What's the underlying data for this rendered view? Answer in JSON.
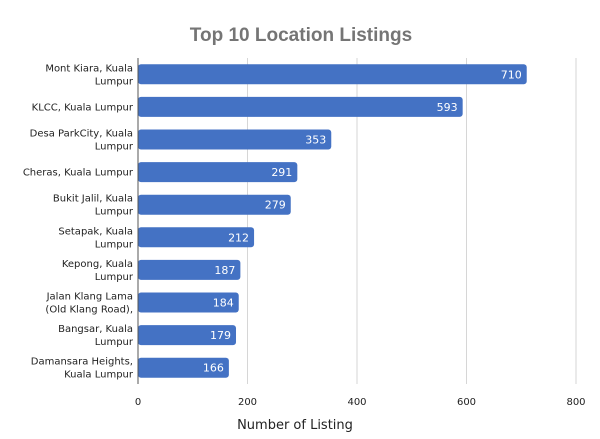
{
  "chart_data": {
    "type": "bar",
    "orientation": "horizontal",
    "title": "Top 10 Location Listings",
    "xlabel": "Number of Listing",
    "ylabel": "",
    "xlim": [
      0,
      800
    ],
    "xticks": [
      "0",
      "200",
      "400",
      "600",
      "800"
    ],
    "grid": true,
    "legend": "none",
    "bar_color": "#4472c4",
    "categories": [
      [
        "Mont Kiara, Kuala",
        "Lumpur"
      ],
      [
        "KLCC, Kuala Lumpur"
      ],
      [
        "Desa ParkCity, Kuala",
        "Lumpur"
      ],
      [
        "Cheras, Kuala Lumpur"
      ],
      [
        "Bukit Jalil, Kuala",
        "Lumpur"
      ],
      [
        "Setapak, Kuala",
        "Lumpur"
      ],
      [
        "Kepong, Kuala",
        "Lumpur"
      ],
      [
        "Jalan Klang Lama",
        "(Old Klang Road),"
      ],
      [
        "Bangsar, Kuala",
        "Lumpur"
      ],
      [
        "Damansara Heights,",
        "Kuala Lumpur"
      ]
    ],
    "values": [
      710,
      593,
      353,
      291,
      279,
      212,
      187,
      184,
      179,
      166
    ]
  }
}
